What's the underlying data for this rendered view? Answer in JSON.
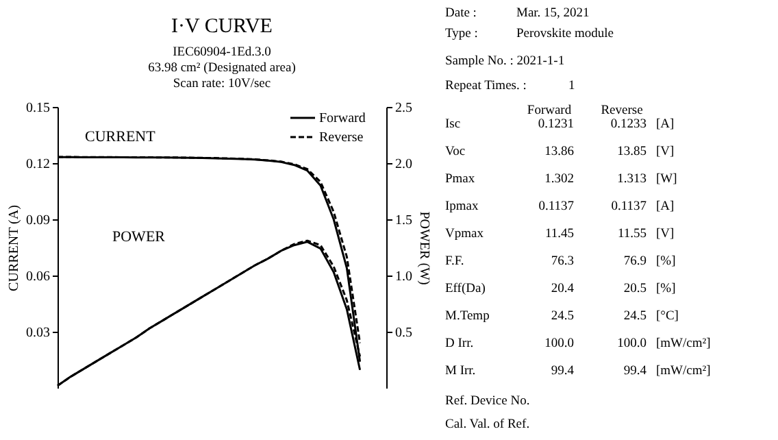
{
  "chart_data": [
    {
      "type": "line",
      "title": "I·V CURVE",
      "subtitle": [
        "IEC60904-1Ed.3.0",
        "63.98 cm² (Designated area)",
        "Scan rate: 10V/sec"
      ],
      "ylabel": "CURRENT (A)",
      "y2label": "POWER (W)",
      "categories": [
        null,
        null,
        null,
        null,
        null,
        null,
        null,
        null,
        null,
        null,
        null,
        null,
        null,
        null,
        null,
        null,
        null,
        null,
        null,
        null,
        null,
        null,
        null,
        null,
        null,
        null
      ],
      "series": [
        {
          "name": "Forward",
          "color": "#000000",
          "line_style": "solid",
          "values": [
            0.1232,
            0.1232,
            0.1231,
            0.1231,
            0.1231,
            0.1231,
            0.123,
            0.123,
            0.123,
            0.1229,
            0.1228,
            0.1227,
            0.1226,
            0.1224,
            0.1222,
            0.1219,
            0.1214,
            0.1206,
            0.119,
            0.116,
            0.108,
            0.09,
            0.064,
            0.014,
            null,
            null
          ]
        },
        {
          "name": "Reverse",
          "color": "#000000",
          "line_style": "dashed",
          "values": [
            0.1233,
            0.1233,
            0.1232,
            0.1232,
            0.1232,
            0.1231,
            0.1231,
            0.1231,
            0.123,
            0.123,
            0.1229,
            0.1228,
            0.1227,
            0.1225,
            0.1223,
            0.122,
            0.1215,
            0.1208,
            0.1194,
            0.1168,
            0.11,
            0.094,
            0.07,
            0.024,
            null,
            null
          ]
        },
        {
          "color": "#000000",
          "line_style": "solid",
          "axis": "y2",
          "values": [
            0.02,
            0.1,
            0.17,
            0.24,
            0.31,
            0.38,
            0.45,
            0.53,
            0.6,
            0.67,
            0.74,
            0.81,
            0.88,
            0.95,
            1.02,
            1.09,
            1.15,
            1.22,
            1.27,
            1.3,
            1.24,
            1.03,
            0.7,
            0.16,
            null,
            null
          ]
        },
        {
          "color": "#000000",
          "line_style": "dashed",
          "axis": "y2",
          "values": [
            0.02,
            0.1,
            0.17,
            0.24,
            0.31,
            0.38,
            0.45,
            0.53,
            0.6,
            0.67,
            0.74,
            0.81,
            0.88,
            0.95,
            1.02,
            1.09,
            1.15,
            1.22,
            1.28,
            1.31,
            1.27,
            1.08,
            0.78,
            0.28,
            null,
            null
          ]
        }
      ],
      "ylim": [
        0,
        0.15
      ],
      "yticks": [
        0.03,
        0.06,
        0.09,
        0.12,
        0.15
      ],
      "y2lim": [
        0,
        2.5
      ],
      "y2ticks": [
        0.5,
        {
          "value": 1,
          "label": "1.0"
        },
        1.5,
        {
          "value": 2,
          "label": "2.0"
        },
        2.5
      ],
      "annotations": [
        "CURRENT",
        "POWER"
      ],
      "legend": "top right",
      "grid": false
    },
    {
      "type": "other",
      "annotations": [
        "Date :",
        "Mar. 15, 2021",
        "Type :",
        "Perovskite module",
        "Sample No. : 2021-1-1",
        "Repeat Times. :",
        "1",
        "Ref. Device No.",
        "Cal. Val. of Ref."
      ],
      "categories": [
        "Forward",
        "Reverse"
      ],
      "y_categories": [
        "Isc",
        "Voc",
        "Pmax",
        "Ipmax",
        "Vpmax",
        "F.F.",
        "Eff(Da)",
        "M.Temp",
        "D Irr.",
        "M Irr."
      ],
      "y2_categories": [
        "[A]",
        "[V]",
        "[W]",
        "[A]",
        "[V]",
        "[%]",
        "[%]",
        "[°C]",
        "[mW/cm²]",
        "[mW/cm²]"
      ],
      "cell_labels": [
        [
          "0.1231",
          "0.1233"
        ],
        [
          "13.86",
          "13.85"
        ],
        [
          "1.302",
          "1.313"
        ],
        [
          "0.1137",
          "0.1137"
        ],
        [
          "11.45",
          "11.55"
        ],
        [
          "76.3",
          "76.9"
        ],
        [
          "20.4",
          "20.5"
        ],
        [
          "24.5",
          "24.5"
        ],
        [
          "100.0",
          "100.0"
        ],
        [
          "99.4",
          "99.4"
        ]
      ]
    }
  ]
}
